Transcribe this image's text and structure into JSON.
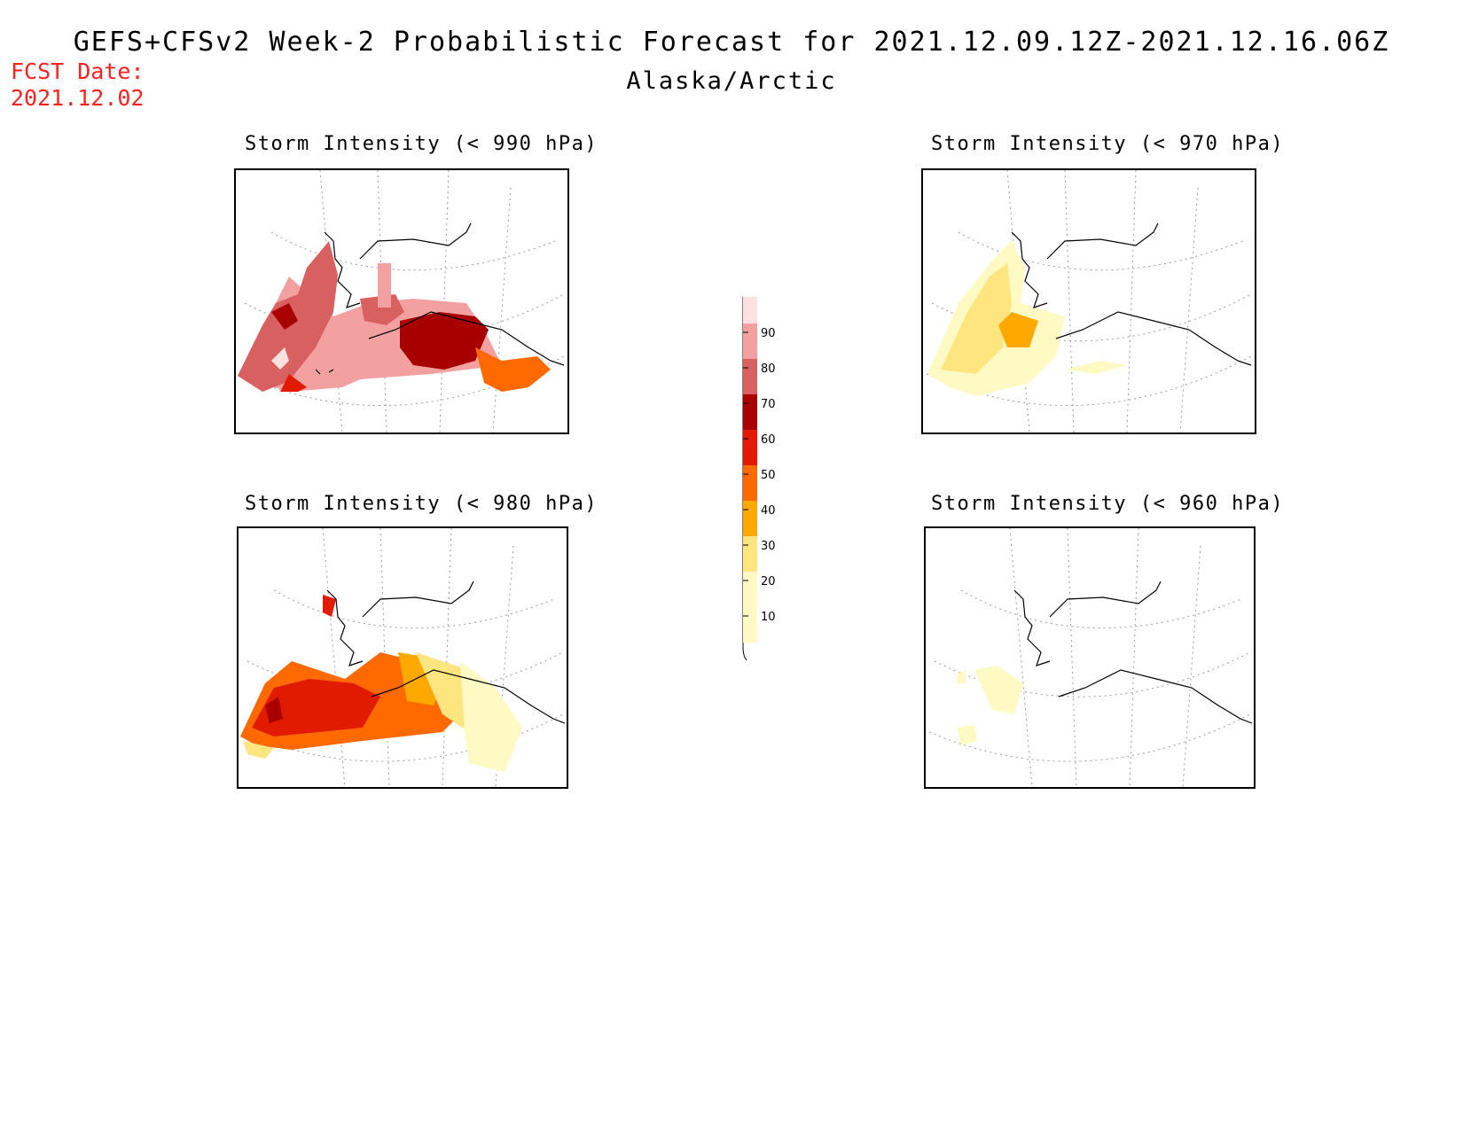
{
  "header": {
    "title": "GEFS+CFSv2 Week-2 Probabilistic Forecast for 2021.12.09.12Z-2021.12.16.06Z",
    "subtitle": "Alaska/Arctic",
    "fcst_date_label": "FCST Date:",
    "fcst_date_value": "2021.12.02"
  },
  "panels": [
    {
      "title": "Storm Intensity (< 990 hPa)",
      "threshold_hpa": 990
    },
    {
      "title": "Storm Intensity (< 970 hPa)",
      "threshold_hpa": 970
    },
    {
      "title": "Storm Intensity (< 980 hPa)",
      "threshold_hpa": 980
    },
    {
      "title": "Storm Intensity (< 960 hPa)",
      "threshold_hpa": 960
    }
  ],
  "colorbar": {
    "labels": [
      "90",
      "80",
      "70",
      "60",
      "50",
      "40",
      "30",
      "20",
      "10"
    ],
    "colors": {
      "p10": "#fffac4",
      "p20": "#ffe580",
      "p30": "#ffa800",
      "p40": "#ff6a00",
      "p50": "#e01b00",
      "p60": "#a80000",
      "p70": "#d96060",
      "p80": "#f2a0a0",
      "p90": "#fde0e0"
    }
  }
}
